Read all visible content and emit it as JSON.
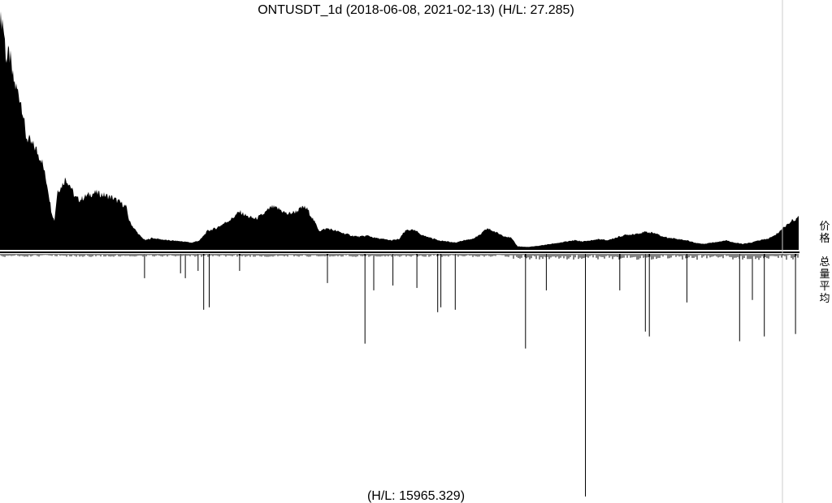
{
  "chart_data": {
    "type": "area",
    "title": "ONTUSDT_1d (2018-06-08, 2021-02-13) (H/L: 27.285)",
    "x_range": [
      "2018-06-08",
      "2021-02-13"
    ],
    "price_label": "价格",
    "volume_label": "总量平均",
    "volume_footer": "(H/L: 15965.329)",
    "price_ratio": [
      [
        0,
        1.0
      ],
      [
        0.004,
        0.95
      ],
      [
        0.008,
        0.8
      ],
      [
        0.012,
        0.82
      ],
      [
        0.016,
        0.72
      ],
      [
        0.02,
        0.68
      ],
      [
        0.024,
        0.65
      ],
      [
        0.028,
        0.6
      ],
      [
        0.032,
        0.48
      ],
      [
        0.036,
        0.46
      ],
      [
        0.04,
        0.44
      ],
      [
        0.044,
        0.43
      ],
      [
        0.048,
        0.4
      ],
      [
        0.052,
        0.38
      ],
      [
        0.056,
        0.32
      ],
      [
        0.06,
        0.26
      ],
      [
        0.064,
        0.17
      ],
      [
        0.068,
        0.12
      ],
      [
        0.072,
        0.25
      ],
      [
        0.076,
        0.26
      ],
      [
        0.082,
        0.3
      ],
      [
        0.088,
        0.27
      ],
      [
        0.094,
        0.22
      ],
      [
        0.1,
        0.21
      ],
      [
        0.11,
        0.23
      ],
      [
        0.12,
        0.24
      ],
      [
        0.13,
        0.23
      ],
      [
        0.14,
        0.22
      ],
      [
        0.15,
        0.2
      ],
      [
        0.158,
        0.18
      ],
      [
        0.162,
        0.12
      ],
      [
        0.168,
        0.09
      ],
      [
        0.175,
        0.06
      ],
      [
        0.182,
        0.04
      ],
      [
        0.19,
        0.05
      ],
      [
        0.2,
        0.045
      ],
      [
        0.21,
        0.04
      ],
      [
        0.22,
        0.038
      ],
      [
        0.23,
        0.035
      ],
      [
        0.24,
        0.03
      ],
      [
        0.25,
        0.04
      ],
      [
        0.26,
        0.08
      ],
      [
        0.27,
        0.09
      ],
      [
        0.28,
        0.11
      ],
      [
        0.29,
        0.13
      ],
      [
        0.3,
        0.16
      ],
      [
        0.305,
        0.15
      ],
      [
        0.31,
        0.14
      ],
      [
        0.32,
        0.13
      ],
      [
        0.33,
        0.15
      ],
      [
        0.34,
        0.18
      ],
      [
        0.35,
        0.17
      ],
      [
        0.36,
        0.15
      ],
      [
        0.37,
        0.16
      ],
      [
        0.38,
        0.18
      ],
      [
        0.385,
        0.17
      ],
      [
        0.39,
        0.14
      ],
      [
        0.4,
        0.08
      ],
      [
        0.41,
        0.09
      ],
      [
        0.42,
        0.08
      ],
      [
        0.43,
        0.07
      ],
      [
        0.44,
        0.06
      ],
      [
        0.45,
        0.055
      ],
      [
        0.46,
        0.06
      ],
      [
        0.47,
        0.05
      ],
      [
        0.48,
        0.045
      ],
      [
        0.49,
        0.04
      ],
      [
        0.5,
        0.045
      ],
      [
        0.505,
        0.07
      ],
      [
        0.51,
        0.085
      ],
      [
        0.52,
        0.08
      ],
      [
        0.53,
        0.06
      ],
      [
        0.54,
        0.05
      ],
      [
        0.55,
        0.04
      ],
      [
        0.56,
        0.035
      ],
      [
        0.57,
        0.03
      ],
      [
        0.58,
        0.04
      ],
      [
        0.59,
        0.045
      ],
      [
        0.6,
        0.06
      ],
      [
        0.61,
        0.09
      ],
      [
        0.62,
        0.075
      ],
      [
        0.63,
        0.06
      ],
      [
        0.64,
        0.05
      ],
      [
        0.648,
        0.015
      ],
      [
        0.66,
        0.012
      ],
      [
        0.67,
        0.015
      ],
      [
        0.68,
        0.02
      ],
      [
        0.69,
        0.025
      ],
      [
        0.7,
        0.03
      ],
      [
        0.71,
        0.035
      ],
      [
        0.72,
        0.04
      ],
      [
        0.73,
        0.035
      ],
      [
        0.74,
        0.04
      ],
      [
        0.75,
        0.045
      ],
      [
        0.76,
        0.04
      ],
      [
        0.77,
        0.05
      ],
      [
        0.78,
        0.06
      ],
      [
        0.79,
        0.065
      ],
      [
        0.8,
        0.07
      ],
      [
        0.81,
        0.075
      ],
      [
        0.82,
        0.07
      ],
      [
        0.83,
        0.055
      ],
      [
        0.84,
        0.05
      ],
      [
        0.85,
        0.045
      ],
      [
        0.86,
        0.04
      ],
      [
        0.87,
        0.03
      ],
      [
        0.88,
        0.025
      ],
      [
        0.89,
        0.03
      ],
      [
        0.9,
        0.035
      ],
      [
        0.91,
        0.04
      ],
      [
        0.92,
        0.03
      ],
      [
        0.93,
        0.025
      ],
      [
        0.94,
        0.03
      ],
      [
        0.95,
        0.04
      ],
      [
        0.96,
        0.045
      ],
      [
        0.97,
        0.06
      ],
      [
        0.98,
        0.09
      ],
      [
        0.99,
        0.12
      ],
      [
        1.0,
        0.135
      ]
    ],
    "volume_spikes_ratio": [
      [
        0.181,
        0.1
      ],
      [
        0.226,
        0.08
      ],
      [
        0.232,
        0.1
      ],
      [
        0.248,
        0.07
      ],
      [
        0.255,
        0.23
      ],
      [
        0.262,
        0.22
      ],
      [
        0.3,
        0.07
      ],
      [
        0.41,
        0.12
      ],
      [
        0.457,
        0.37
      ],
      [
        0.468,
        0.15
      ],
      [
        0.492,
        0.13
      ],
      [
        0.522,
        0.14
      ],
      [
        0.548,
        0.24
      ],
      [
        0.552,
        0.22
      ],
      [
        0.57,
        0.23
      ],
      [
        0.658,
        0.39
      ],
      [
        0.684,
        0.15
      ],
      [
        0.733,
        1.0
      ],
      [
        0.776,
        0.15
      ],
      [
        0.808,
        0.32
      ],
      [
        0.813,
        0.34
      ],
      [
        0.86,
        0.2
      ],
      [
        0.926,
        0.36
      ],
      [
        0.942,
        0.19
      ],
      [
        0.957,
        0.34
      ],
      [
        0.996,
        0.33
      ]
    ]
  }
}
